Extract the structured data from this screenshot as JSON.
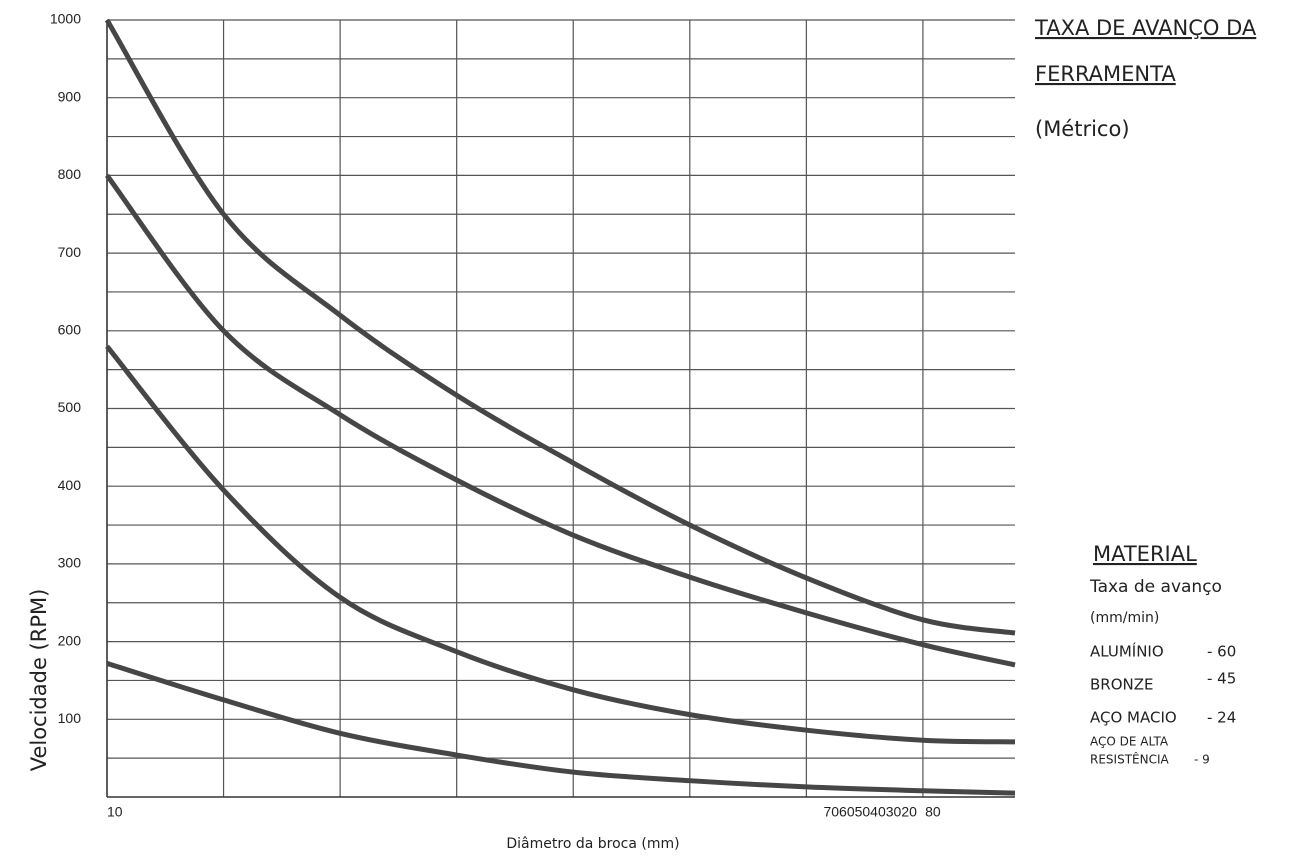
{
  "chart_data": {
    "type": "line",
    "x_label": "Diâmetro da broca (mm)",
    "y_label": "Velocidade (RPM)",
    "x": [
      10,
      20,
      30,
      40,
      50,
      60,
      70,
      80,
      87.9
    ],
    "series": [
      {
        "color": "#464646",
        "values": [
          1000,
          750,
          620,
          517,
          430,
          350,
          282,
          228,
          211
        ]
      },
      {
        "color": "#464646",
        "values": [
          800,
          600,
          492,
          408,
          337,
          283,
          237,
          196,
          170
        ]
      },
      {
        "color": "#464646",
        "values": [
          580,
          395,
          257,
          187,
          138,
          106,
          86,
          73,
          71
        ]
      },
      {
        "color": "#464646",
        "values": [
          172,
          125,
          82,
          54,
          32,
          21,
          13,
          8,
          5
        ]
      }
    ],
    "xlim": [
      10,
      87.9
    ],
    "xticks": [
      10,
      80
    ],
    "xgrid": [
      10,
      20,
      30,
      40,
      50,
      60,
      70,
      80
    ],
    "x_annotation": "706050403020",
    "ylim": [
      0,
      1000
    ],
    "yticks": [
      100,
      200,
      300,
      400,
      500,
      600,
      700,
      800,
      900,
      1000
    ],
    "ygrid": [
      50,
      100,
      150,
      200,
      250,
      300,
      350,
      400,
      450,
      500,
      550,
      600,
      650,
      700,
      750,
      800,
      850,
      900,
      950,
      1000
    ],
    "grid": true,
    "side_title": [
      "TAXA DE AVANÇO DA",
      "FERRAMENTA"
    ],
    "side_subtitle": "(Métrico)",
    "material_heading": "MATERIAL",
    "material_subheading": [
      "Taxa de avanço",
      "(mm/min)"
    ],
    "materials": [
      {
        "name": [
          "ALUMÍNIO"
        ],
        "rate": "- 60"
      },
      {
        "name": [
          "BRONZE"
        ],
        "rate": "- 45"
      },
      {
        "name": [
          "AÇO MACIO"
        ],
        "rate": "- 24"
      },
      {
        "name": [
          "AÇO DE ALTA",
          "RESISTÊNCIA"
        ],
        "rate": "- 9"
      }
    ]
  }
}
